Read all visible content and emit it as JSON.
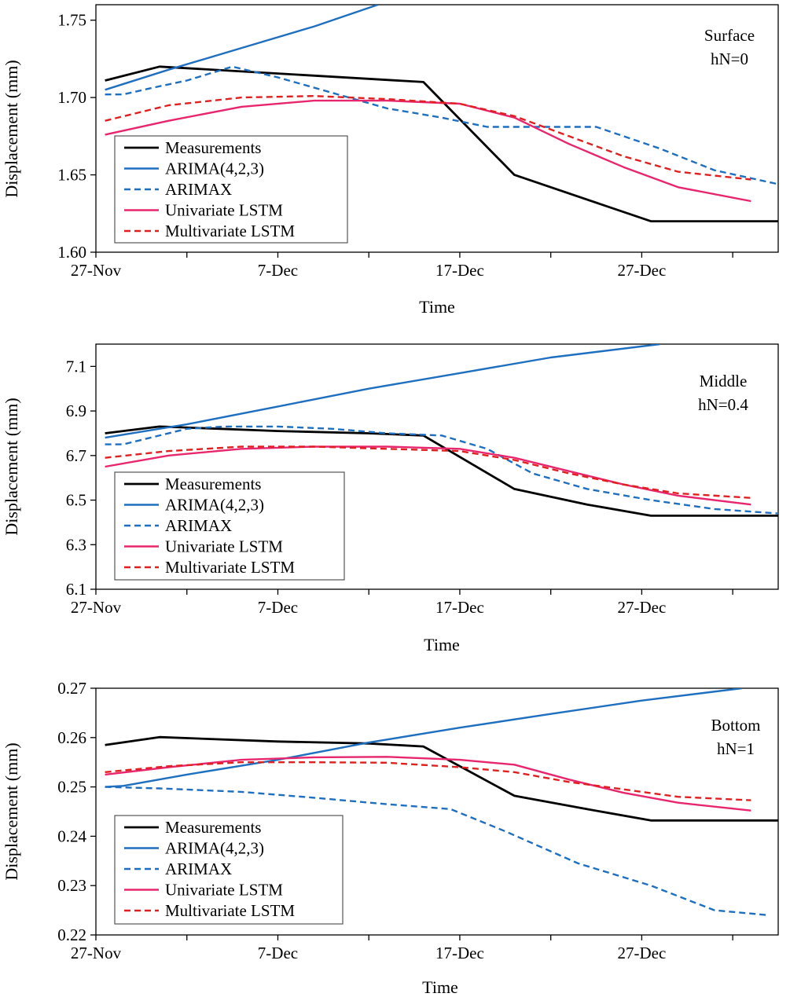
{
  "figure": {
    "background": "#ffffff"
  },
  "chart_data": [
    {
      "type": "line",
      "annotation": [
        "Surface",
        "hN=0"
      ],
      "xlabel": "Time",
      "ylabel": "Displacement  (mm)",
      "xlim": [
        0,
        37.5
      ],
      "ylim": [
        1.6,
        1.76
      ],
      "xticks": [
        {
          "pos": 0,
          "label": "27-Nov"
        },
        {
          "pos": 10,
          "label": "7-Dec"
        },
        {
          "pos": 20,
          "label": "17-Dec"
        },
        {
          "pos": 30,
          "label": "27-Dec"
        }
      ],
      "yticks": [
        {
          "v": 1.6,
          "label": "1.60"
        },
        {
          "v": 1.65,
          "label": "1.65"
        },
        {
          "v": 1.7,
          "label": "1.70"
        },
        {
          "v": 1.75,
          "label": "1.75"
        }
      ],
      "legend": {
        "position": "lower-left"
      },
      "series": [
        {
          "name": "Measurements",
          "color": "#000000",
          "dash": "none",
          "x": [
            0.5,
            3.5,
            18,
            23,
            30.5,
            37.5
          ],
          "y": [
            1.711,
            1.72,
            1.71,
            1.65,
            1.62,
            1.62
          ]
        },
        {
          "name": "ARIMA(4,2,3)",
          "color": "#1f6fc0",
          "dash": "none",
          "x": [
            0.5,
            4,
            8,
            12,
            15.5
          ],
          "y": [
            1.705,
            1.718,
            1.732,
            1.746,
            1.76
          ]
        },
        {
          "name": "ARIMAX",
          "color": "#1f6fc0",
          "dash": "dash",
          "x": [
            0.5,
            1.5,
            3,
            5,
            7.5,
            10,
            13,
            16,
            19,
            21.5,
            24,
            27.5,
            31,
            34,
            37.5
          ],
          "y": [
            1.702,
            1.702,
            1.706,
            1.711,
            1.72,
            1.713,
            1.703,
            1.693,
            1.687,
            1.681,
            1.681,
            1.681,
            1.667,
            1.653,
            1.644
          ]
        },
        {
          "name": "Univariate LSTM",
          "color": "#e8266e",
          "dash": "none",
          "x": [
            0.5,
            4,
            8,
            12,
            16,
            20,
            23,
            26,
            29,
            32,
            36
          ],
          "y": [
            1.676,
            1.685,
            1.694,
            1.698,
            1.698,
            1.696,
            1.687,
            1.67,
            1.655,
            1.642,
            1.633
          ]
        },
        {
          "name": "Multivariate LSTM",
          "color": "#e02020",
          "dash": "dash",
          "x": [
            0.5,
            4,
            8,
            12,
            16,
            20,
            23,
            26,
            29,
            32,
            36
          ],
          "y": [
            1.685,
            1.695,
            1.7,
            1.701,
            1.699,
            1.696,
            1.688,
            1.675,
            1.662,
            1.652,
            1.647
          ]
        }
      ]
    },
    {
      "type": "line",
      "annotation": [
        "Middle",
        "hN=0.4"
      ],
      "xlabel": "Time",
      "ylabel": "Displacement  (mm)",
      "xlim": [
        0,
        37.5
      ],
      "ylim": [
        6.1,
        7.2
      ],
      "xticks": [
        {
          "pos": 0,
          "label": "27-Nov"
        },
        {
          "pos": 10,
          "label": "7-Dec"
        },
        {
          "pos": 20,
          "label": "17-Dec"
        },
        {
          "pos": 30,
          "label": "27-Dec"
        }
      ],
      "yticks": [
        {
          "v": 6.1,
          "label": "6.1"
        },
        {
          "v": 6.3,
          "label": "6.3"
        },
        {
          "v": 6.5,
          "label": "6.5"
        },
        {
          "v": 6.7,
          "label": "6.7"
        },
        {
          "v": 6.9,
          "label": "6.9"
        },
        {
          "v": 7.1,
          "label": "7.1"
        }
      ],
      "legend": {
        "position": "lower-left"
      },
      "series": [
        {
          "name": "Measurements",
          "color": "#000000",
          "dash": "none",
          "x": [
            0.5,
            3.5,
            10,
            15,
            18,
            23,
            27,
            30.5,
            37.5
          ],
          "y": [
            6.8,
            6.83,
            6.81,
            6.8,
            6.79,
            6.55,
            6.48,
            6.43,
            6.43
          ]
        },
        {
          "name": "ARIMA(4,2,3)",
          "color": "#1f6fc0",
          "dash": "none",
          "x": [
            0.5,
            5,
            10,
            15,
            20,
            25,
            31
          ],
          "y": [
            6.78,
            6.84,
            6.92,
            7.0,
            7.07,
            7.14,
            7.2
          ]
        },
        {
          "name": "ARIMAX",
          "color": "#1f6fc0",
          "dash": "dash",
          "x": [
            0.5,
            1.5,
            3,
            5,
            7,
            10,
            13,
            16,
            19,
            21.5,
            24,
            27,
            30.5,
            34,
            37.5
          ],
          "y": [
            6.75,
            6.75,
            6.78,
            6.82,
            6.83,
            6.83,
            6.82,
            6.8,
            6.79,
            6.73,
            6.62,
            6.55,
            6.5,
            6.46,
            6.44
          ]
        },
        {
          "name": "Univariate LSTM",
          "color": "#e8266e",
          "dash": "none",
          "x": [
            0.5,
            4,
            8,
            12,
            16,
            20,
            23,
            26,
            29,
            32,
            36
          ],
          "y": [
            6.65,
            6.7,
            6.73,
            6.74,
            6.74,
            6.73,
            6.69,
            6.63,
            6.57,
            6.52,
            6.48
          ]
        },
        {
          "name": "Multivariate LSTM",
          "color": "#e02020",
          "dash": "dash",
          "x": [
            0.5,
            4,
            8,
            12,
            16,
            20,
            23,
            26,
            29,
            32,
            36
          ],
          "y": [
            6.69,
            6.72,
            6.74,
            6.74,
            6.73,
            6.72,
            6.68,
            6.62,
            6.57,
            6.53,
            6.51
          ]
        }
      ]
    },
    {
      "type": "line",
      "annotation": [
        "Bottom",
        "hN=1"
      ],
      "xlabel": "Time",
      "ylabel": "Displacement  (mm)",
      "xlim": [
        0,
        37.5
      ],
      "ylim": [
        0.22,
        0.27
      ],
      "xticks": [
        {
          "pos": 0,
          "label": "27-Nov"
        },
        {
          "pos": 10,
          "label": "7-Dec"
        },
        {
          "pos": 20,
          "label": "17-Dec"
        },
        {
          "pos": 30,
          "label": "27-Dec"
        }
      ],
      "yticks": [
        {
          "v": 0.22,
          "label": "0.22"
        },
        {
          "v": 0.23,
          "label": "0.23"
        },
        {
          "v": 0.24,
          "label": "0.24"
        },
        {
          "v": 0.25,
          "label": "0.25"
        },
        {
          "v": 0.26,
          "label": "0.26"
        },
        {
          "v": 0.27,
          "label": "0.27"
        }
      ],
      "legend": {
        "position": "lower-left"
      },
      "series": [
        {
          "name": "Measurements",
          "color": "#000000",
          "dash": "none",
          "x": [
            0.5,
            3.5,
            10,
            15,
            18,
            23,
            27,
            30.5,
            37.5
          ],
          "y": [
            0.2585,
            0.2601,
            0.2592,
            0.2588,
            0.2582,
            0.2482,
            0.2455,
            0.2432,
            0.2432
          ]
        },
        {
          "name": "ARIMA(4,2,3)",
          "color": "#1f6fc0",
          "dash": "none",
          "x": [
            0.5,
            1.5,
            5,
            10,
            15,
            20,
            25,
            30,
            35.5
          ],
          "y": [
            0.25,
            0.2502,
            0.2525,
            0.2555,
            0.259,
            0.262,
            0.2648,
            0.2675,
            0.27
          ]
        },
        {
          "name": "ARIMAX",
          "color": "#1f6fc0",
          "dash": "dash",
          "x": [
            0.5,
            3.5,
            8,
            12,
            16,
            19.5,
            22.5,
            26.5,
            30.5,
            34,
            37
          ],
          "y": [
            0.25,
            0.2497,
            0.249,
            0.2478,
            0.2465,
            0.2455,
            0.241,
            0.2345,
            0.23,
            0.225,
            0.224
          ]
        },
        {
          "name": "Univariate LSTM",
          "color": "#e8266e",
          "dash": "none",
          "x": [
            0.5,
            4,
            8,
            12,
            16,
            20,
            23,
            26,
            29,
            32,
            36
          ],
          "y": [
            0.2525,
            0.254,
            0.2555,
            0.256,
            0.2561,
            0.2555,
            0.2545,
            0.2515,
            0.2488,
            0.2468,
            0.2452
          ]
        },
        {
          "name": "Multivariate LSTM",
          "color": "#e02020",
          "dash": "dash",
          "x": [
            0.5,
            4,
            8,
            12,
            16,
            20,
            23,
            26,
            29,
            32,
            36
          ],
          "y": [
            0.253,
            0.2542,
            0.255,
            0.255,
            0.2549,
            0.254,
            0.253,
            0.251,
            0.2495,
            0.248,
            0.2473
          ]
        }
      ]
    }
  ]
}
